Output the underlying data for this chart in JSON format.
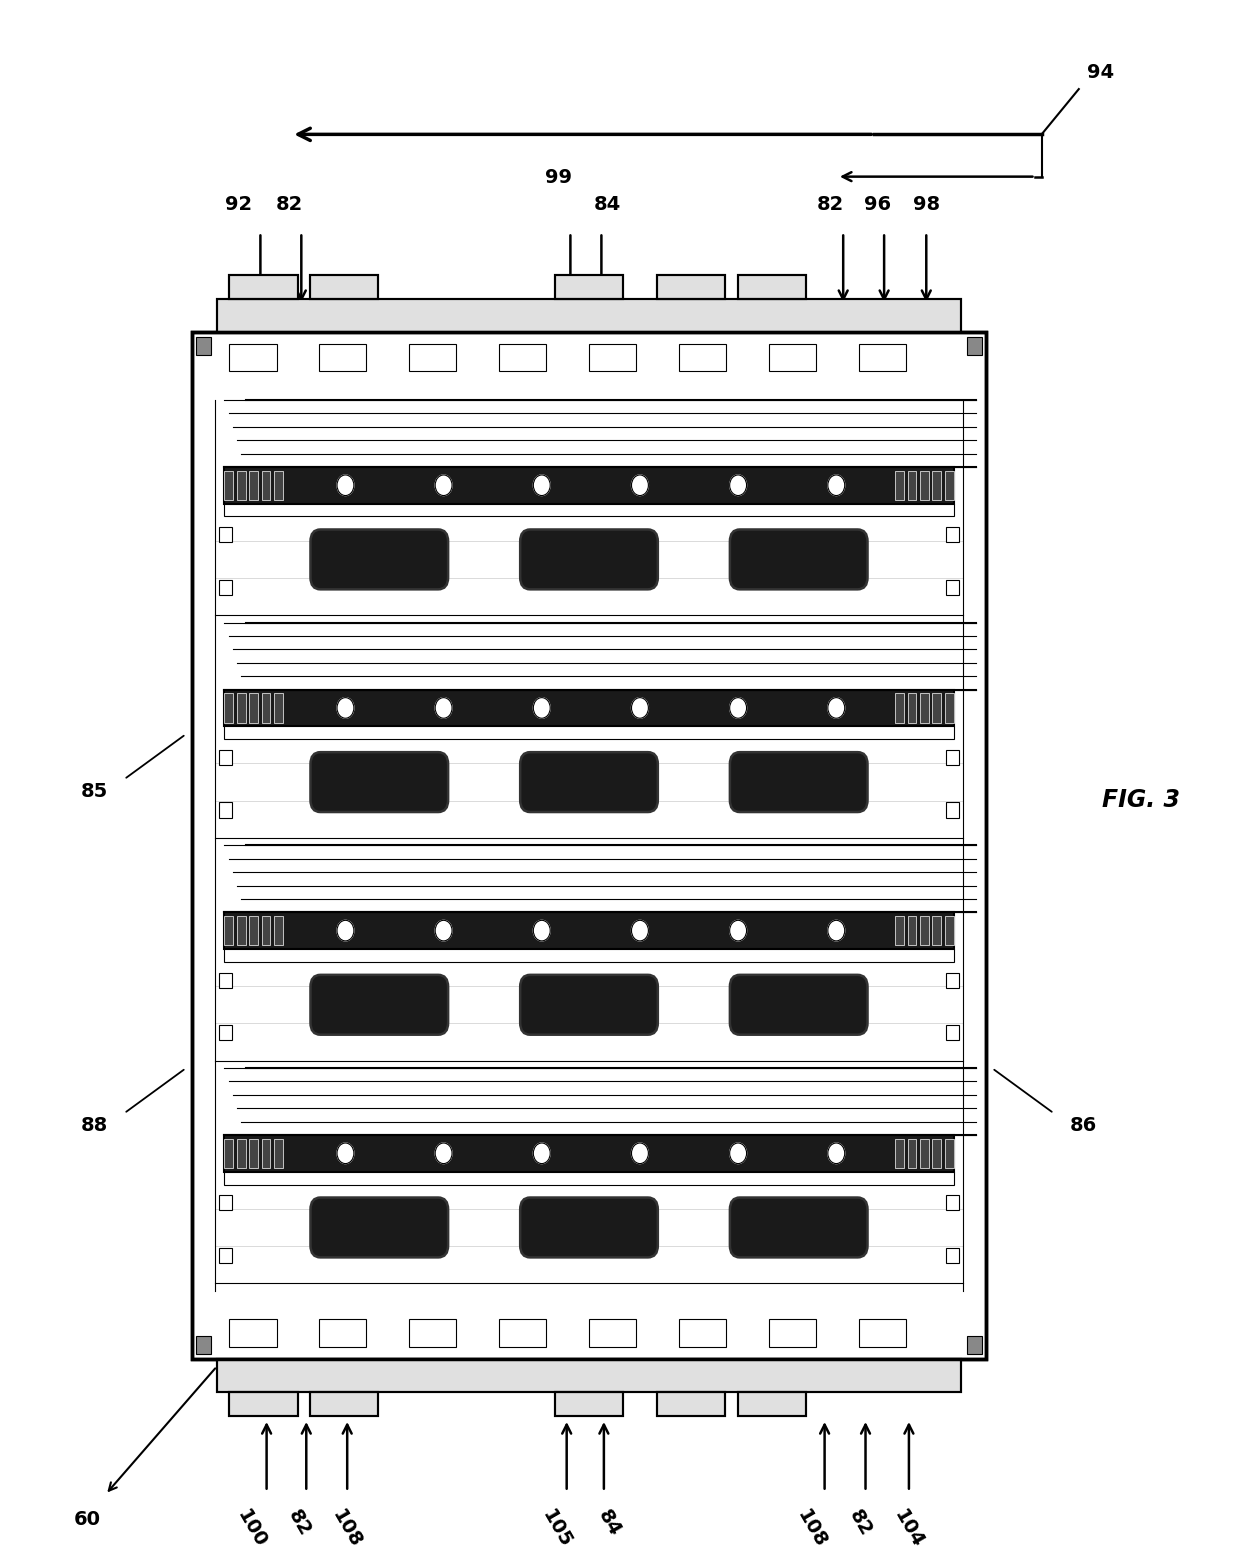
{
  "bg_color": "#ffffff",
  "line_color": "#000000",
  "fig_label": "FIG. 3",
  "fx": 0.155,
  "fy": 0.1,
  "fw": 0.64,
  "fh": 0.68,
  "num_filter_rows": 4
}
